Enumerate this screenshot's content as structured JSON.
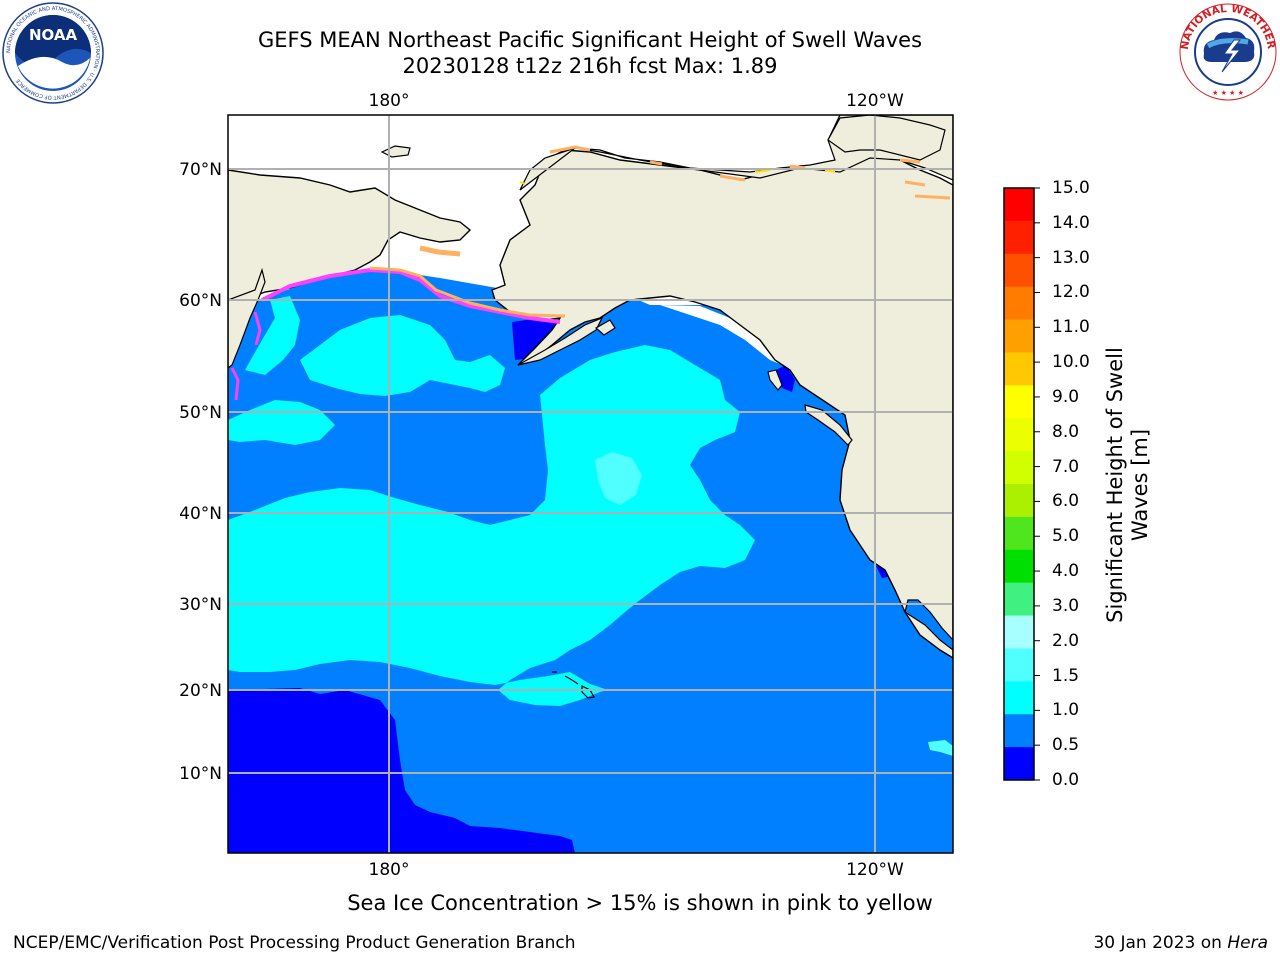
{
  "header": {
    "title_line1": "GEFS MEAN Northeast Pacific Significant Height of Swell Waves",
    "title_line2": "20230128 t12z 216h fcst   Max: 1.89"
  },
  "map": {
    "top_lon_labels": [
      "180°",
      "120°W"
    ],
    "bottom_lon_labels": [
      "180°",
      "120°W"
    ],
    "lat_labels": [
      "70°N",
      "60°N",
      "50°N",
      "40°N",
      "30°N",
      "20°N",
      "10°N"
    ],
    "colors": {
      "land": "#efeedc",
      "ocean_default": "#0080ff",
      "gridline": "#b0b0b0"
    }
  },
  "colorbar": {
    "label": "Significant Height of Swell Waves [m]",
    "ticks": [
      "15.0",
      "14.0",
      "13.0",
      "12.0",
      "11.0",
      "10.0",
      "9.0",
      "8.0",
      "7.0",
      "6.0",
      "5.0",
      "4.0",
      "3.0",
      "2.0",
      "1.5",
      "1.0",
      "0.5",
      "0.0"
    ],
    "colors_top_to_bottom": [
      "#ff0000",
      "#ff2000",
      "#ff5000",
      "#ff7c00",
      "#ffa000",
      "#ffc800",
      "#ffff00",
      "#ecff00",
      "#d2ff00",
      "#aaf000",
      "#50e61e",
      "#00e000",
      "#40f080",
      "#a8ffff",
      "#50ffff",
      "#00ffff",
      "#0080ff",
      "#0000ff"
    ]
  },
  "logos": {
    "noaa": {
      "text": "NOAA",
      "ring_text": "NATIONAL OCEANIC AND ATMOSPHERIC ADMINISTRATION · U.S. DEPARTMENT OF COMMERCE"
    },
    "nws": {
      "ring_text": "NATIONAL WEATHER SERVICE"
    }
  },
  "caption": "Sea Ice Concentration > 15% is shown in pink to yellow",
  "footer": {
    "left": "NCEP/EMC/Verification Post Processing Product Generation Branch",
    "right_date": "30 Jan 2023 on",
    "right_machine": "Hera"
  }
}
